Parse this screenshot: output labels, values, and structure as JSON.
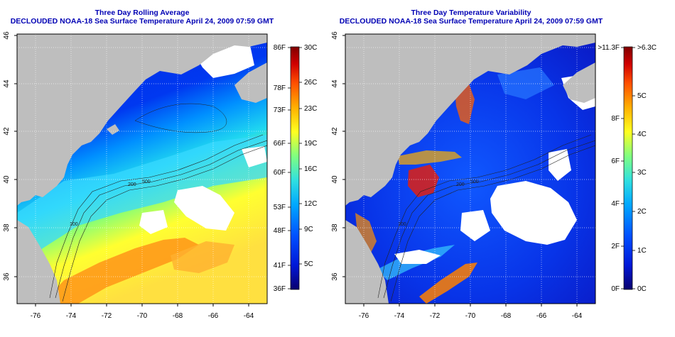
{
  "left_panel": {
    "title_line1": "Three Day Rolling Average",
    "title_line2": "DECLOUDED NOAA-18 Sea Surface Temperature April 24, 2009 07:59 GMT",
    "colorbar_left_labels": [
      "86F",
      "78F",
      "73F",
      "66F",
      "60F",
      "53F",
      "48F",
      "41F",
      "36F"
    ],
    "colorbar_right_labels": [
      "30C",
      "26C",
      "23C",
      "19C",
      "16C",
      "12C",
      "9C",
      "5C"
    ],
    "contour_labels": [
      "100",
      "200",
      "500"
    ]
  },
  "right_panel": {
    "title_line1": "Three Day Temperature Variability",
    "title_line2": "DECLOUDED NOAA-18 Sea Surface Temperature April 24, 2009 07:59 GMT",
    "colorbar_left_labels": [
      ">11.3F",
      "8F",
      "6F",
      "4F",
      "2F",
      "0F"
    ],
    "colorbar_right_labels": [
      ">6.3C",
      "5C",
      "4C",
      "3C",
      "2C",
      "1C",
      "0C"
    ],
    "contour_labels": [
      "100",
      "200",
      "500"
    ]
  },
  "axes": {
    "lon_ticks": [
      "-76",
      "-74",
      "-72",
      "-70",
      "-68",
      "-66",
      "-64"
    ],
    "lat_ticks": [
      "46",
      "44",
      "42",
      "40",
      "38",
      "36"
    ]
  },
  "colors": {
    "title": "#0000b4",
    "land": "#bebebe",
    "sst_scale": [
      "#08006e",
      "#0018d8",
      "#0050ff",
      "#00a8ff",
      "#30e0e0",
      "#80ff80",
      "#ffff20",
      "#ffb000",
      "#ff5000",
      "#d00000",
      "#800000"
    ]
  }
}
